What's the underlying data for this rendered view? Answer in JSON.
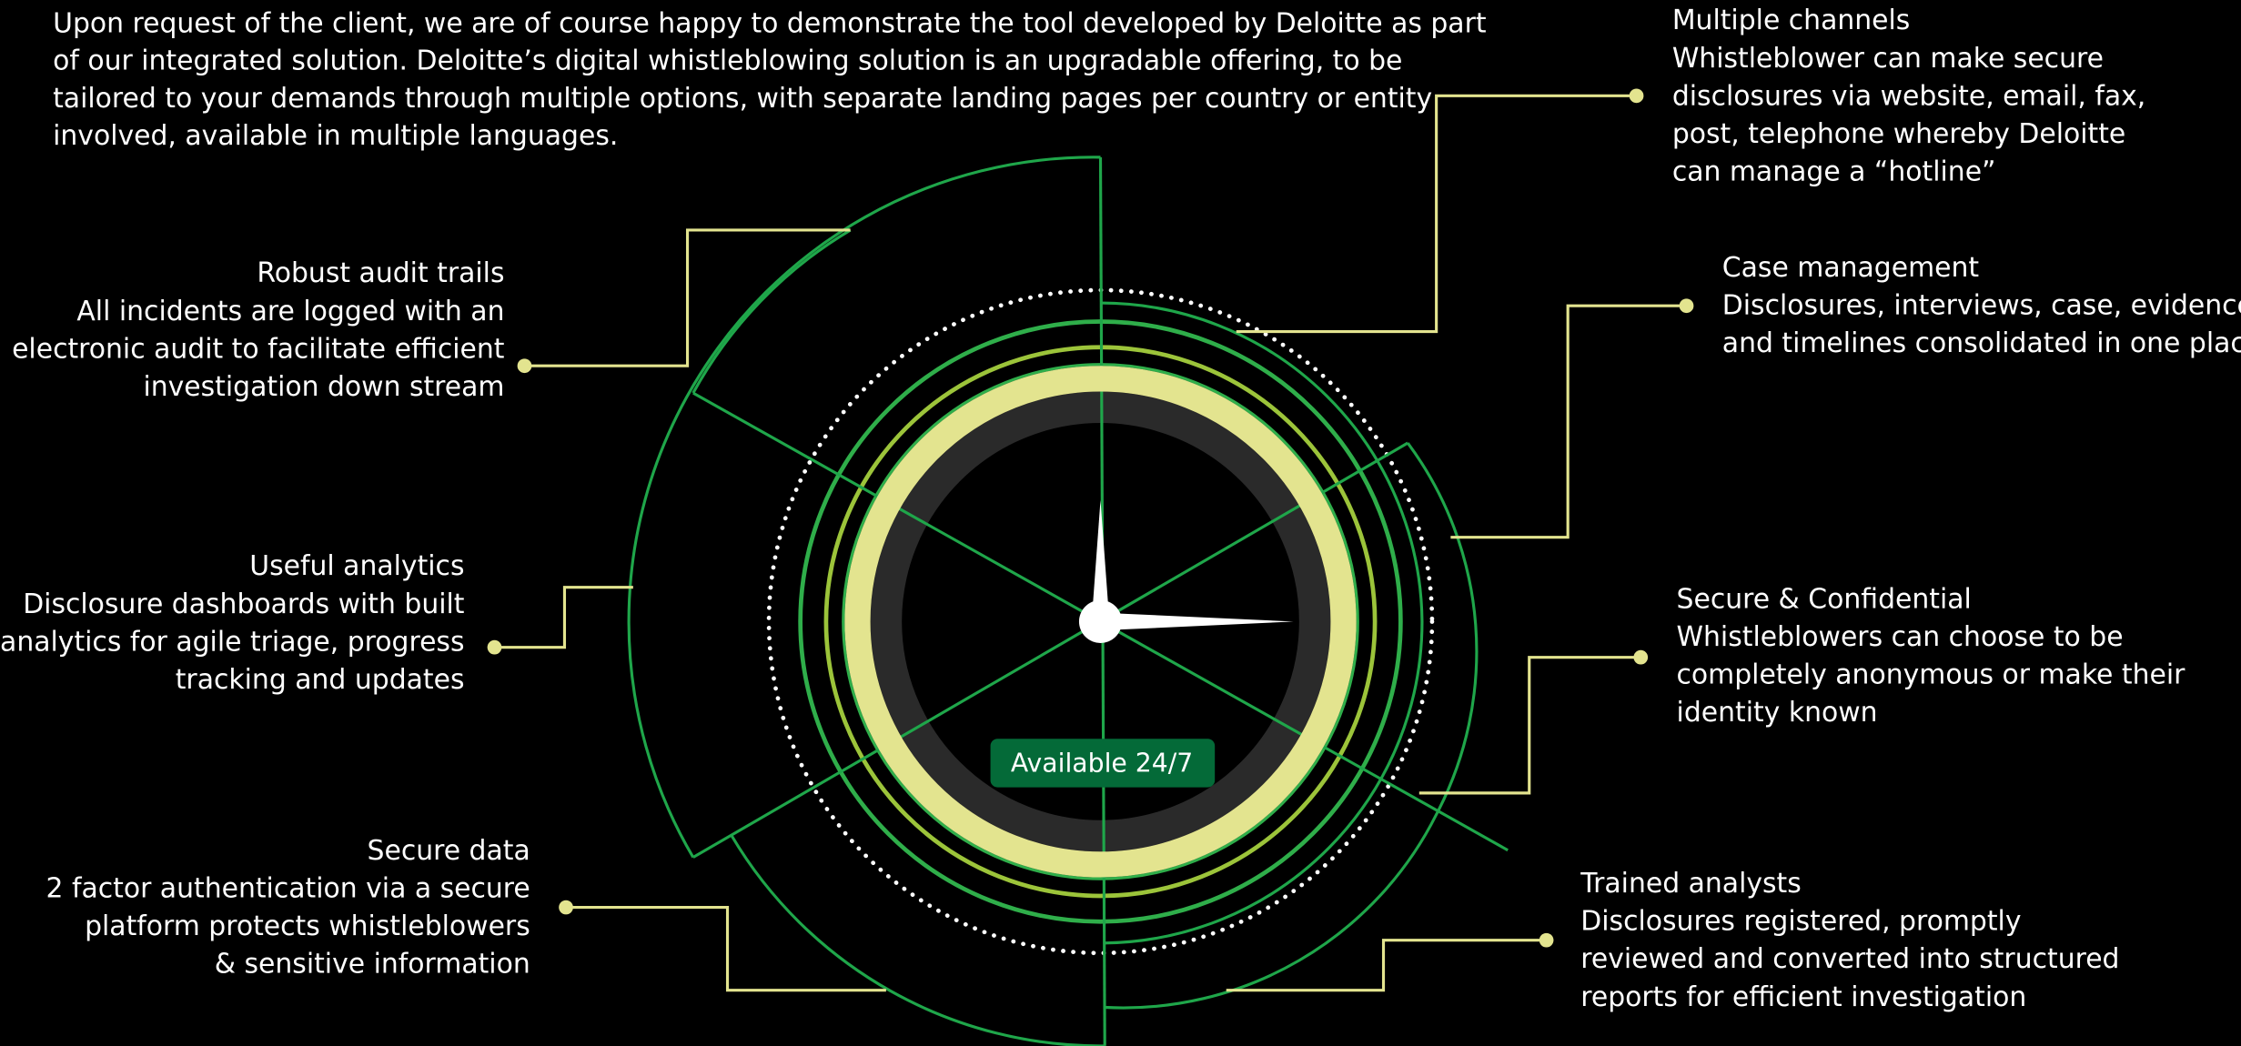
{
  "intro": [
    "Upon request of the client, we are of course happy to demonstrate the tool developed by Deloitte as part",
    "of our integrated solution. Deloitte’s digital whistleblowing solution is an upgradable offering, to be",
    "tailored to your demands through multiple options, with separate landing pages per country or entity",
    "involved, available in multiple languages."
  ],
  "center_label": "Available 24/7",
  "features": [
    {
      "title": "Multiple channels",
      "lines": [
        "Whistleblower can make secure",
        "disclosures via website, email, fax,",
        "post, telephone whereby Deloitte",
        "can manage a “hotline”"
      ]
    },
    {
      "title": "Case management",
      "lines": [
        "Disclosures, interviews, case, evidence",
        "and timelines consolidated in one place"
      ]
    },
    {
      "title": "Secure & Confidential",
      "lines": [
        "Whistleblowers can choose to be",
        "completely anonymous or make their",
        "identity known"
      ]
    },
    {
      "title": "Trained analysts",
      "lines": [
        "Disclosures registered, promptly",
        "reviewed and converted into structured",
        "reports for efficient investigation"
      ]
    },
    {
      "title": "Robust audit trails",
      "lines": [
        "All incidents are logged with an",
        "electronic audit to facilitate efficient",
        "investigation down stream"
      ]
    },
    {
      "title": "Useful analytics",
      "lines": [
        "Disclosure dashboards with built",
        "in analytics for agile triage, progress",
        "tracking and updates"
      ]
    },
    {
      "title": "Secure data",
      "lines": [
        "2 factor authentication via a secure",
        "platform protects whistleblowers",
        "& sensitive information"
      ]
    }
  ]
}
